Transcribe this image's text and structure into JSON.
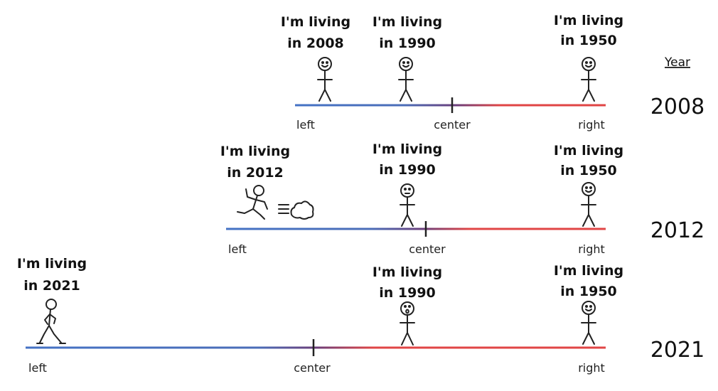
{
  "header": {
    "year_heading": "Year"
  },
  "colors": {
    "left": "#4472c4",
    "mid": "#6b3e7a",
    "right": "#e04545",
    "ink": "#222222"
  },
  "rows": [
    {
      "year": "2008",
      "labels": {
        "left": "left",
        "center": "center",
        "right": "right"
      },
      "figures": [
        {
          "caption_line1": "I'm living",
          "caption_line2": "in 2008",
          "pose": "standing",
          "face": "smile"
        },
        {
          "caption_line1": "I'm living",
          "caption_line2": "in 1990",
          "pose": "standing",
          "face": "smile"
        },
        {
          "caption_line1": "I'm living",
          "caption_line2": "in 1950",
          "pose": "standing",
          "face": "smile"
        }
      ]
    },
    {
      "year": "2012",
      "labels": {
        "left": "left",
        "center": "center",
        "right": "right"
      },
      "figures": [
        {
          "caption_line1": "I'm living",
          "caption_line2": "in 2012",
          "pose": "running",
          "face": "none"
        },
        {
          "caption_line1": "I'm living",
          "caption_line2": "in 1990",
          "pose": "standing",
          "face": "neutral"
        },
        {
          "caption_line1": "I'm living",
          "caption_line2": "in 1950",
          "pose": "standing",
          "face": "smile"
        }
      ]
    },
    {
      "year": "2021",
      "labels": {
        "left": "left",
        "center": "center",
        "right": "right"
      },
      "figures": [
        {
          "caption_line1": "I'm living",
          "caption_line2": "in 2021",
          "pose": "walking",
          "face": "none"
        },
        {
          "caption_line1": "I'm living",
          "caption_line2": "in 1990",
          "pose": "standing",
          "face": "surprised"
        },
        {
          "caption_line1": "I'm living",
          "caption_line2": "in 1950",
          "pose": "standing",
          "face": "smile"
        }
      ]
    }
  ]
}
